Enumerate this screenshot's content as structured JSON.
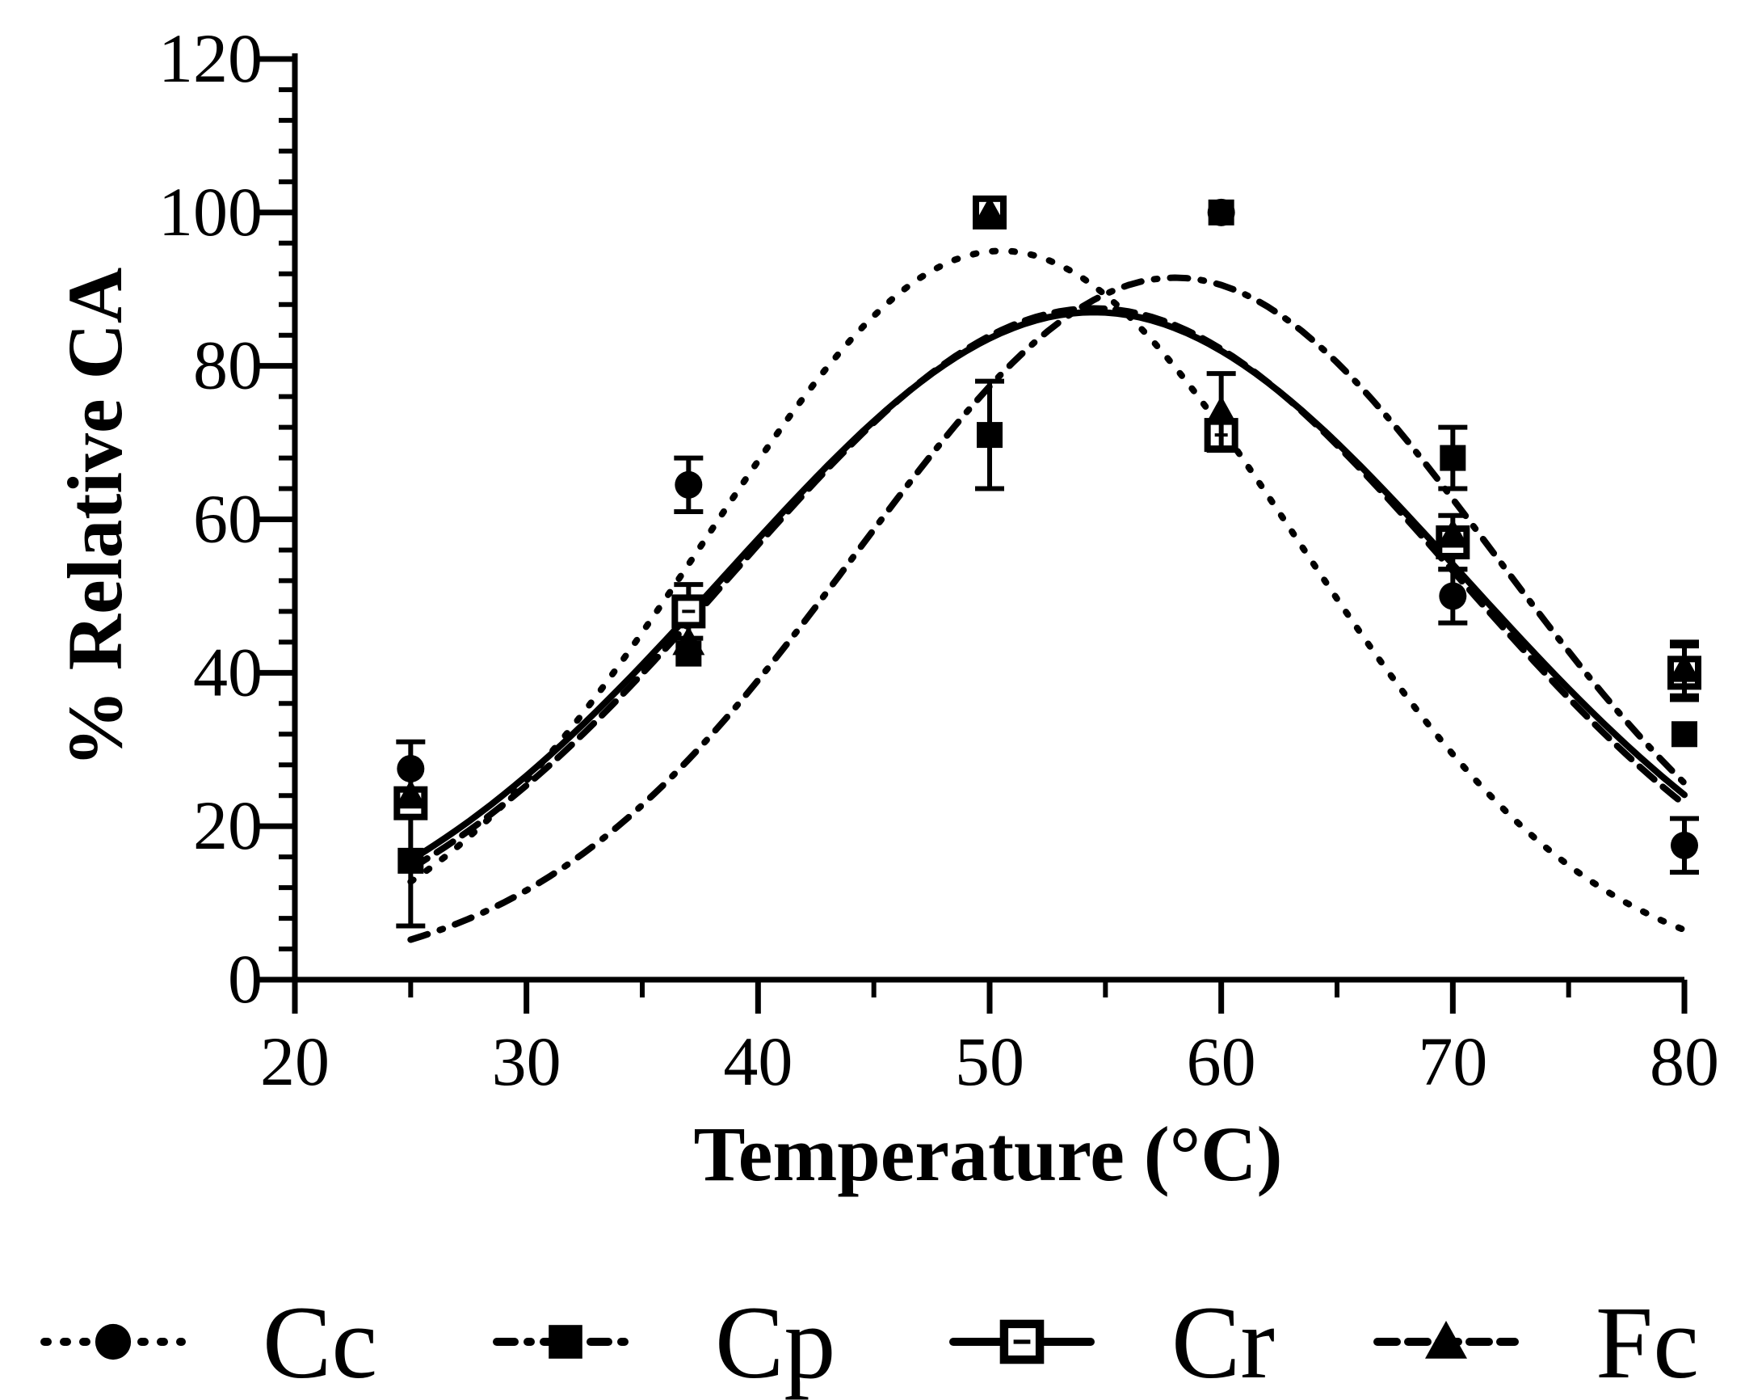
{
  "chart_data": {
    "type": "line",
    "title": "",
    "xlabel": "Temperature (°C)",
    "ylabel": "% Relative CA",
    "xlim": [
      20,
      80
    ],
    "ylim": [
      0,
      120
    ],
    "xticks": [
      20,
      30,
      40,
      50,
      60,
      70,
      80
    ],
    "yticks": [
      0,
      20,
      40,
      60,
      80,
      100,
      120
    ],
    "grid": false,
    "legend_position": "bottom",
    "series": [
      {
        "name": "Cc",
        "marker": "circle",
        "line_style": "dotted",
        "x": [
          25,
          37,
          50,
          60,
          70,
          80
        ],
        "values": [
          27.5,
          64.5,
          100,
          100,
          50,
          17.5
        ],
        "errors": [
          3.5,
          3.5,
          0,
          0,
          3.5,
          3.5
        ],
        "fit": {
          "peak": 95,
          "center": 50.5,
          "width": 18
        }
      },
      {
        "name": "Cp",
        "marker": "square",
        "line_style": "dash-dot",
        "x": [
          25,
          37,
          50,
          60,
          70,
          80
        ],
        "values": [
          15.5,
          42.5,
          71,
          100,
          68,
          32
        ],
        "errors": [
          8.5,
          0,
          7,
          0,
          4,
          0
        ],
        "fit": {
          "peak": 91.5,
          "center": 58,
          "width": 19.5
        }
      },
      {
        "name": "Cr",
        "marker": "open-square",
        "line_style": "solid",
        "x": [
          25,
          37,
          50,
          60,
          70,
          80
        ],
        "values": [
          23,
          48,
          100,
          71,
          57,
          40
        ],
        "errors": [
          0,
          3.5,
          0,
          0,
          3.5,
          3.5
        ],
        "fit": {
          "peak": 87,
          "center": 54.5,
          "width": 22.5
        }
      },
      {
        "name": "Fc",
        "marker": "triangle",
        "line_style": "dashed",
        "x": [
          25,
          37,
          50,
          60,
          70,
          80
        ],
        "values": [
          24,
          44,
          100,
          74,
          58,
          40.5
        ],
        "errors": [
          0,
          0,
          0,
          5,
          0,
          3.5
        ],
        "fit": {
          "peak": 87.5,
          "center": 54.5,
          "width": 22
        }
      }
    ]
  }
}
